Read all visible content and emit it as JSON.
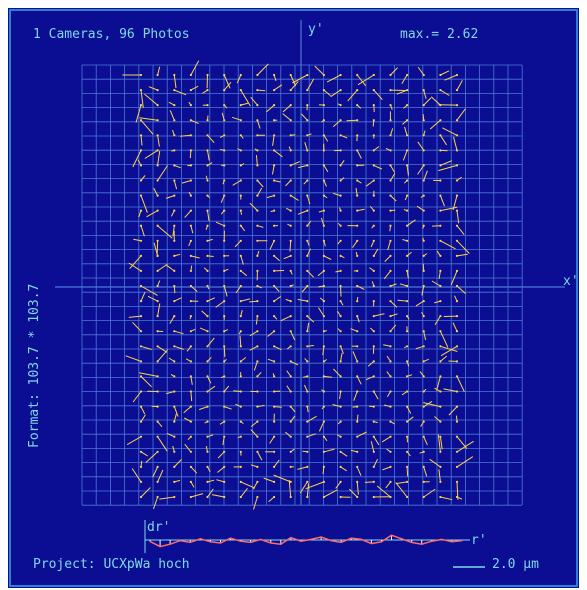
{
  "header": {
    "cameras_photos": "1 Cameras, 96 Photos",
    "max_label": "max.= 2.62"
  },
  "axes": {
    "y_label": "y'",
    "x_label": "x'"
  },
  "side": {
    "format_label": "Format: 103.7 * 103.7"
  },
  "footer": {
    "project_label": "Project: UCXpWa hoch",
    "scale_label": "2.0 µm"
  },
  "profile": {
    "dr_label": "dr'",
    "r_label": "r'",
    "values": [
      -0.12,
      -0.55,
      -0.35,
      -0.05,
      -0.2,
      0.1,
      -0.15,
      -0.25,
      0.15,
      -0.1,
      -0.2,
      0.05,
      -0.25,
      -0.35,
      0.2,
      -0.1,
      0.05,
      0.25,
      -0.05,
      -0.2,
      0.15,
      0.05,
      -0.3,
      -0.15,
      0.4,
      0.1,
      -0.2,
      -0.35,
      -0.1,
      0.05,
      -0.15,
      -0.05
    ]
  },
  "colors": {
    "background": "#0b0e93",
    "frame": "#2f7fd6",
    "grid": "#4b78d8",
    "text": "#7fd9e8",
    "vector": "#ffd24d",
    "profile_line": "#ff6a6a"
  }
}
